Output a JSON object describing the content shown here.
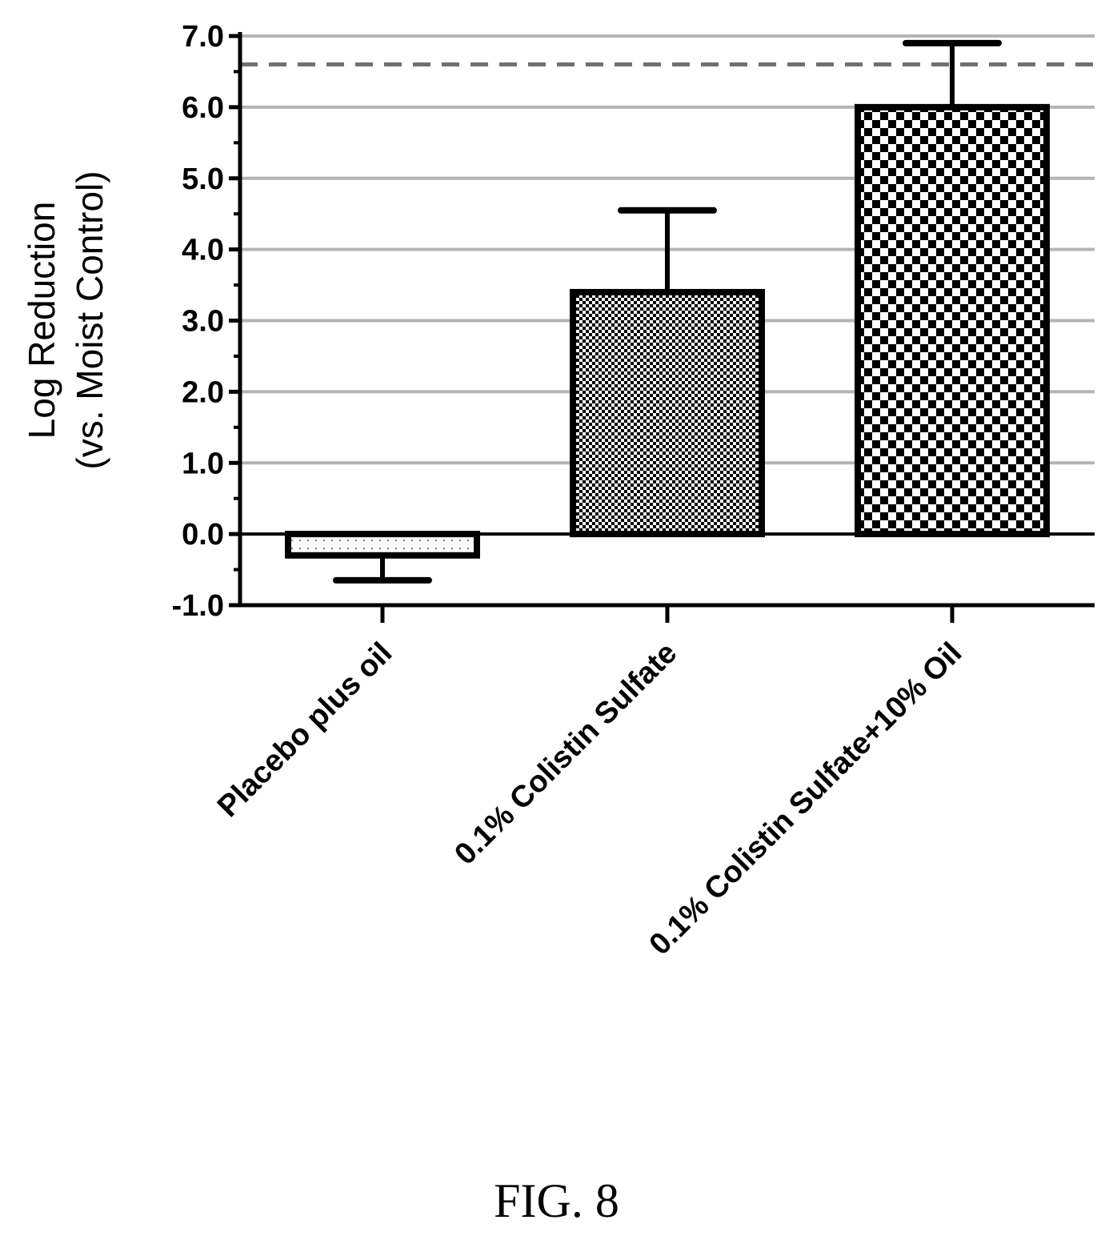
{
  "figure": {
    "caption": "FIG. 8"
  },
  "chart_data": {
    "type": "bar",
    "title": "",
    "xlabel": "",
    "ylabel": "Log Reduction",
    "ylabel_sub": "(vs. Moist Control)",
    "ylim": [
      -1.0,
      7.0
    ],
    "yticks": [
      "7.0",
      "6.0",
      "5.0",
      "4.0",
      "3.0",
      "2.0",
      "1.0",
      "0.0",
      "-1.0"
    ],
    "ytick_values": [
      7,
      6,
      5,
      4,
      3,
      2,
      1,
      0,
      -1
    ],
    "grid": true,
    "legend": "none",
    "reference_line": {
      "style": "dashed",
      "value": 6.6
    },
    "categories": [
      "Placebo plus oil",
      "0.1% Colistin Sulfate",
      "0.1% Colistin Sulfate+10% Oil"
    ],
    "values": [
      -0.3,
      3.4,
      6.0
    ],
    "error": [
      0.35,
      1.15,
      0.9
    ],
    "patterns": [
      "dotted",
      "fine-check",
      "coarse-check"
    ],
    "colors": {
      "bar_stroke": "#000000",
      "grid": "#b4b4b4",
      "reference_line": "#707070",
      "axis": "#000000"
    }
  }
}
